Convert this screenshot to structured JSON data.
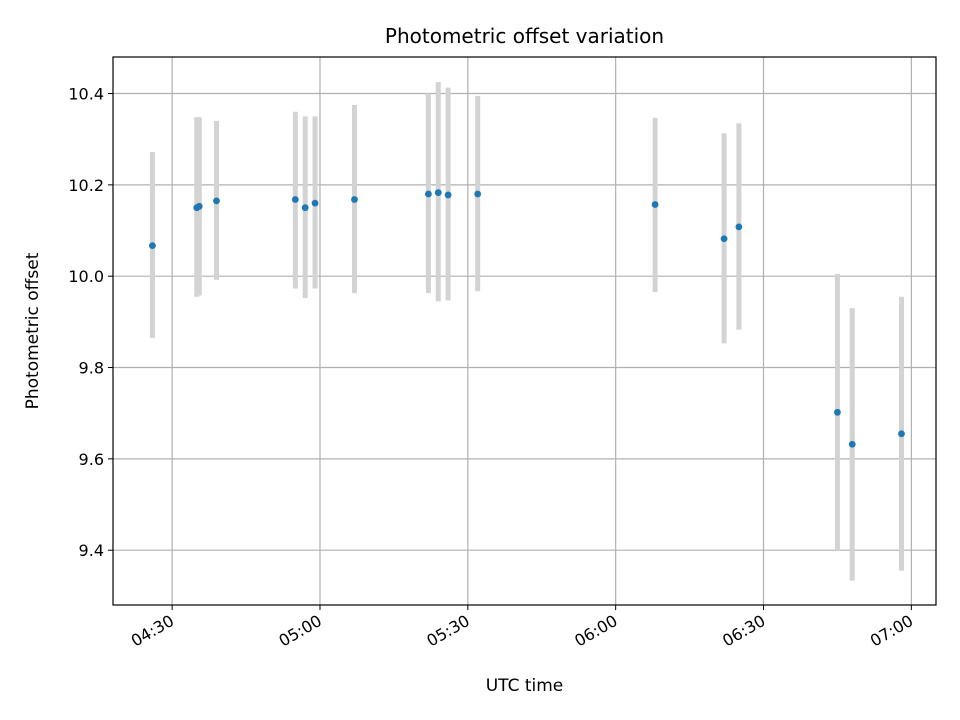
{
  "chart_data": {
    "type": "scatter",
    "title": "Photometric offset variation",
    "xlabel": "UTC time",
    "ylabel": "Photometric offset",
    "xlim": [
      "04:18",
      "07:05"
    ],
    "ylim": [
      9.28,
      10.48
    ],
    "x_ticks": [
      "04:30",
      "05:00",
      "05:30",
      "06:00",
      "06:30",
      "07:00"
    ],
    "y_ticks": [
      9.4,
      9.6,
      9.8,
      10.0,
      10.2,
      10.4
    ],
    "grid": true,
    "colors": {
      "point": "#1f77b4",
      "errorbar": "#d3d3d3",
      "grid": "#b0b0b0"
    },
    "points": [
      {
        "x": "04:26",
        "y": 10.067,
        "low": 9.865,
        "high": 10.272
      },
      {
        "x": "04:35",
        "y": 10.15,
        "low": 9.955,
        "high": 10.348
      },
      {
        "x": "04:35.5",
        "y": 10.153,
        "low": 9.958,
        "high": 10.348
      },
      {
        "x": "04:39",
        "y": 10.165,
        "low": 9.992,
        "high": 10.34
      },
      {
        "x": "04:55",
        "y": 10.168,
        "low": 9.973,
        "high": 10.36
      },
      {
        "x": "04:57",
        "y": 10.15,
        "low": 9.952,
        "high": 10.35
      },
      {
        "x": "04:59",
        "y": 10.16,
        "low": 9.973,
        "high": 10.35
      },
      {
        "x": "05:07",
        "y": 10.168,
        "low": 9.963,
        "high": 10.375
      },
      {
        "x": "05:22",
        "y": 10.18,
        "low": 9.963,
        "high": 10.4
      },
      {
        "x": "05:24",
        "y": 10.183,
        "low": 9.945,
        "high": 10.425
      },
      {
        "x": "05:26",
        "y": 10.178,
        "low": 9.947,
        "high": 10.413
      },
      {
        "x": "05:32",
        "y": 10.18,
        "low": 9.967,
        "high": 10.395
      },
      {
        "x": "06:08",
        "y": 10.157,
        "low": 9.965,
        "high": 10.347
      },
      {
        "x": "06:22",
        "y": 10.082,
        "low": 9.853,
        "high": 10.313
      },
      {
        "x": "06:25",
        "y": 10.108,
        "low": 9.883,
        "high": 10.335
      },
      {
        "x": "06:45",
        "y": 9.702,
        "low": 9.4,
        "high": 10.005
      },
      {
        "x": "06:48",
        "y": 9.632,
        "low": 9.333,
        "high": 9.93
      },
      {
        "x": "06:58",
        "y": 9.655,
        "low": 9.355,
        "high": 9.955
      }
    ]
  }
}
